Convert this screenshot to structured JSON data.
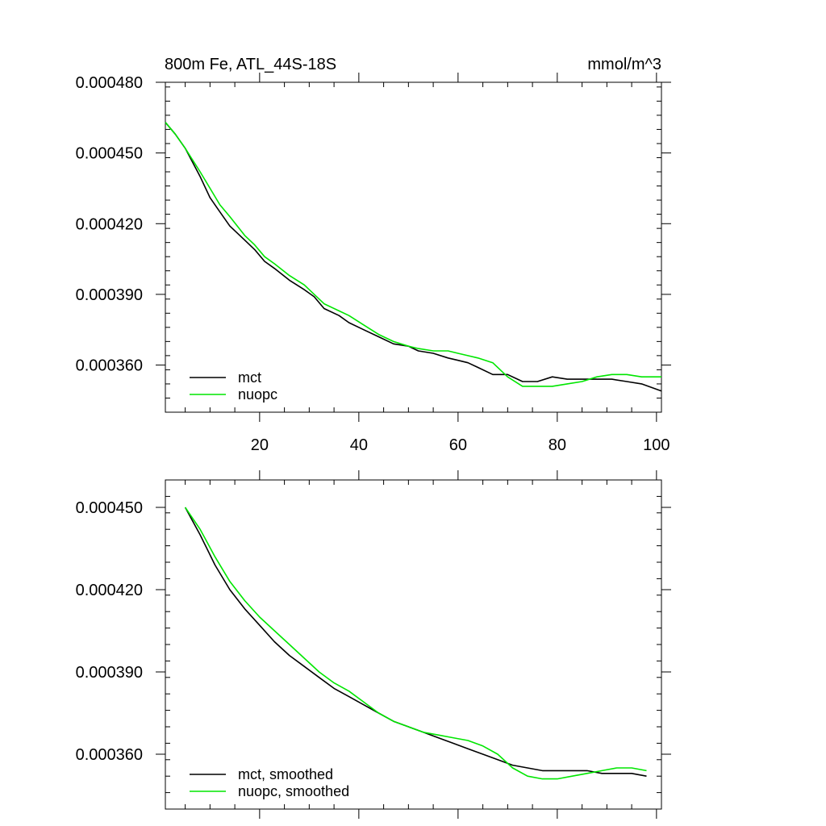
{
  "chart_data": [
    {
      "type": "line",
      "title": "800m Fe, ATL_44S-18S",
      "units": "mmol/m^3",
      "xlim": [
        1,
        101
      ],
      "ylim": [
        0.00034,
        0.00048
      ],
      "xticks": [
        20,
        40,
        60,
        80,
        100
      ],
      "xtick_labels": [
        "20",
        "40",
        "60",
        "80",
        "100"
      ],
      "yticks": [
        0.00036,
        0.00039,
        0.00042,
        0.00045,
        0.00048
      ],
      "ytick_labels": [
        "0.000360",
        "0.000390",
        "0.000420",
        "0.000450",
        "0.000480"
      ],
      "legend_position": "bottom-left",
      "series": [
        {
          "name": "mct",
          "color": "#000000",
          "x": [
            1,
            3,
            5,
            8,
            10,
            12,
            14,
            17,
            19,
            21,
            23,
            26,
            29,
            31,
            33,
            36,
            38,
            41,
            44,
            47,
            50,
            52,
            55,
            58,
            60,
            62,
            64,
            67,
            70,
            73,
            76,
            79,
            82,
            85,
            88,
            91,
            94,
            97,
            101
          ],
          "y": [
            0.000463,
            0.000458,
            0.000452,
            0.00044,
            0.000431,
            0.000425,
            0.000419,
            0.000413,
            0.000409,
            0.000404,
            0.000401,
            0.000396,
            0.000392,
            0.000389,
            0.000384,
            0.000381,
            0.000378,
            0.000375,
            0.000372,
            0.000369,
            0.000368,
            0.000366,
            0.000365,
            0.000363,
            0.000362,
            0.000361,
            0.000359,
            0.000356,
            0.000356,
            0.000353,
            0.000353,
            0.000355,
            0.000354,
            0.000354,
            0.000354,
            0.000354,
            0.000353,
            0.000352,
            0.000349
          ]
        },
        {
          "name": "nuopc",
          "color": "#00e600",
          "x": [
            1,
            3,
            5,
            8,
            10,
            12,
            14,
            17,
            19,
            21,
            23,
            26,
            29,
            31,
            33,
            36,
            38,
            41,
            44,
            47,
            50,
            52,
            55,
            58,
            60,
            62,
            64,
            67,
            70,
            73,
            76,
            79,
            82,
            85,
            88,
            91,
            94,
            97,
            101
          ],
          "y": [
            0.000463,
            0.000458,
            0.000452,
            0.000442,
            0.000435,
            0.000428,
            0.000423,
            0.000415,
            0.000411,
            0.000406,
            0.000403,
            0.000398,
            0.000394,
            0.00039,
            0.000386,
            0.000383,
            0.000381,
            0.000377,
            0.000373,
            0.00037,
            0.000368,
            0.000367,
            0.000366,
            0.000366,
            0.000365,
            0.000364,
            0.000363,
            0.000361,
            0.000355,
            0.000351,
            0.000351,
            0.000351,
            0.000352,
            0.000353,
            0.000355,
            0.000356,
            0.000356,
            0.000355,
            0.000355
          ]
        }
      ]
    },
    {
      "type": "line",
      "title": "",
      "xlim": [
        1,
        101
      ],
      "ylim": [
        0.00034,
        0.00046
      ],
      "xticks": [
        20,
        40,
        60,
        80,
        100
      ],
      "xtick_labels": [],
      "yticks": [
        0.00036,
        0.00039,
        0.00042,
        0.00045
      ],
      "ytick_labels": [
        "0.000360",
        "0.000390",
        "0.000420",
        "0.000450"
      ],
      "legend_position": "bottom-left",
      "series": [
        {
          "name": "mct, smoothed",
          "color": "#000000",
          "x": [
            5,
            8,
            11,
            14,
            17,
            20,
            23,
            26,
            29,
            32,
            35,
            38,
            41,
            44,
            47,
            50,
            53,
            56,
            59,
            62,
            65,
            68,
            71,
            74,
            77,
            80,
            83,
            86,
            89,
            92,
            95,
            98
          ],
          "y": [
            0.00045,
            0.00044,
            0.000429,
            0.00042,
            0.000413,
            0.000407,
            0.000401,
            0.000396,
            0.000392,
            0.000388,
            0.000384,
            0.000381,
            0.000378,
            0.000375,
            0.000372,
            0.00037,
            0.000368,
            0.000366,
            0.000364,
            0.000362,
            0.00036,
            0.000358,
            0.000356,
            0.000355,
            0.000354,
            0.000354,
            0.000354,
            0.000354,
            0.000353,
            0.000353,
            0.000353,
            0.000352
          ]
        },
        {
          "name": "nuopc, smoothed",
          "color": "#00e600",
          "x": [
            5,
            8,
            11,
            14,
            17,
            20,
            23,
            26,
            29,
            32,
            35,
            38,
            41,
            44,
            47,
            50,
            53,
            56,
            59,
            62,
            65,
            68,
            71,
            74,
            77,
            80,
            83,
            86,
            89,
            92,
            95,
            98
          ],
          "y": [
            0.00045,
            0.000442,
            0.000432,
            0.000423,
            0.000416,
            0.00041,
            0.000405,
            0.0004,
            0.000395,
            0.00039,
            0.000386,
            0.000383,
            0.000379,
            0.000375,
            0.000372,
            0.00037,
            0.000368,
            0.000367,
            0.000366,
            0.000365,
            0.000363,
            0.00036,
            0.000355,
            0.000352,
            0.000351,
            0.000351,
            0.000352,
            0.000353,
            0.000354,
            0.000355,
            0.000355,
            0.000354
          ]
        }
      ]
    }
  ]
}
